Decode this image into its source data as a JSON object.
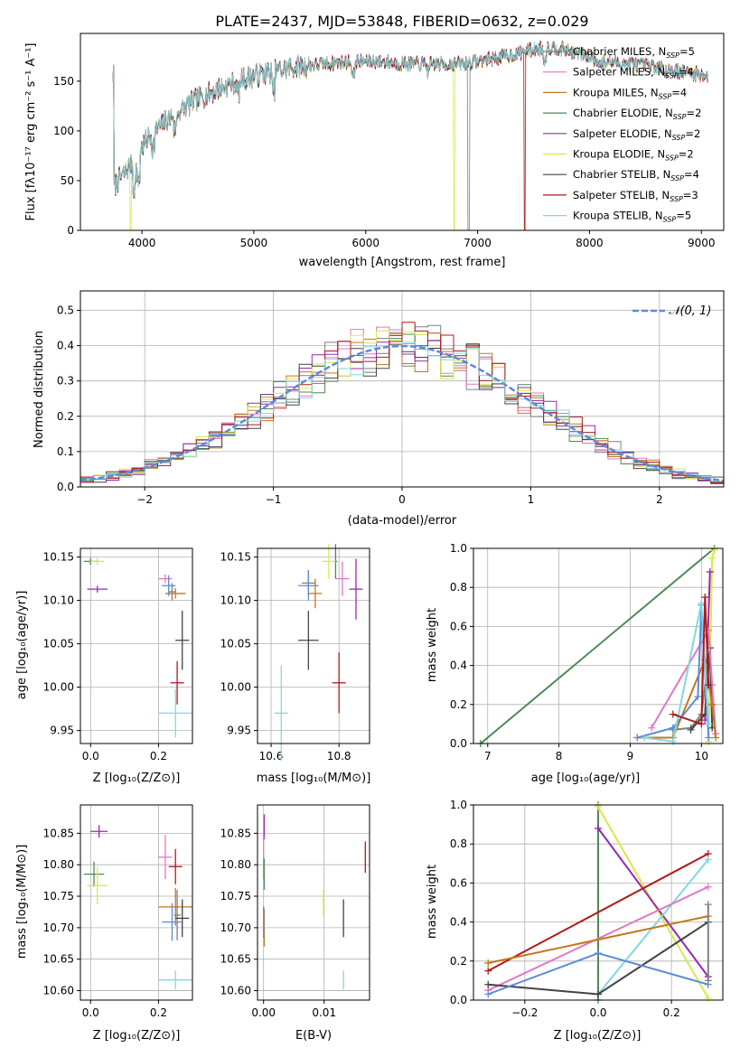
{
  "chart_data": [
    {
      "id": "spectrum",
      "type": "line",
      "title": "PLATE=2437, MJD=53848, FIBERID=0632, z=0.029",
      "xlabel": "wavelength [Angstrom, rest frame]",
      "ylabel": "Flux [fλ10⁻¹⁷ erg cm⁻² s⁻¹ A⁻¹]",
      "xlim": [
        3450,
        9200
      ],
      "ylim": [
        0,
        198
      ],
      "xticks": [
        "4000",
        "5000",
        "6000",
        "7000",
        "8000",
        "9000"
      ],
      "yticks": [
        "0",
        "50",
        "100",
        "150"
      ],
      "legend_position": "top-right",
      "grid": false,
      "series": [
        {
          "name": "Chabrier MILES, N_SSP=5",
          "label_main": "Chabrier MILES, N",
          "label_sub": "SSP",
          "label_tail": "=5",
          "color": "#808080"
        },
        {
          "name": "Salpeter MILES, N_SSP=4",
          "label_main": "Salpeter MILES, N",
          "label_sub": "SSP",
          "label_tail": "=4",
          "color": "#e377c2"
        },
        {
          "name": "Kroupa MILES, N_SSP=4",
          "label_main": "Kroupa MILES, N",
          "label_sub": "SSP",
          "label_tail": "=4",
          "color": "#c8751a"
        },
        {
          "name": "Chabrier ELODIE, N_SSP=2",
          "label_main": "Chabrier ELODIE, N",
          "label_sub": "SSP",
          "label_tail": "=2",
          "color": "#4e8a57"
        },
        {
          "name": "Salpeter ELODIE, N_SSP=2",
          "label_main": "Salpeter ELODIE, N",
          "label_sub": "SSP",
          "label_tail": "=2",
          "color": "#9b27af"
        },
        {
          "name": "Kroupa ELODIE, N_SSP=2",
          "label_main": "Kroupa ELODIE, N",
          "label_sub": "SSP",
          "label_tail": "=2",
          "color": "#d8e84a"
        },
        {
          "name": "Chabrier STELIB, N_SSP=4",
          "label_main": "Chabrier STELIB, N",
          "label_sub": "SSP",
          "label_tail": "=4",
          "color": "#444444"
        },
        {
          "name": "Salpeter STELIB, N_SSP=3",
          "label_main": "Salpeter STELIB, N",
          "label_sub": "SSP",
          "label_tail": "=3",
          "color": "#b11a1a"
        },
        {
          "name": "Kroupa STELIB, N_SSP=5",
          "label_main": "Kroupa STELIB, N",
          "label_sub": "SSP",
          "label_tail": "=5",
          "color": "#7fd8e0"
        }
      ],
      "continuum": {
        "x": [
          3750,
          3850,
          3950,
          4050,
          4150,
          4300,
          4500,
          4700,
          4900,
          5100,
          5300,
          5500,
          5700,
          5900,
          6100,
          6300,
          6500,
          6700,
          6900,
          7100,
          7300,
          7500,
          7700,
          7900,
          8100,
          8300,
          8500,
          8700,
          8900,
          9050
        ],
        "y": [
          45,
          58,
          75,
          92,
          103,
          118,
          132,
          143,
          152,
          158,
          163,
          166,
          168,
          170,
          170,
          168,
          167,
          167,
          168,
          172,
          176,
          182,
          184,
          178,
          170,
          168,
          166,
          162,
          158,
          156
        ]
      },
      "cutoffs": [
        {
          "series": 5,
          "x": 3900
        },
        {
          "series": 5,
          "x": 6790
        },
        {
          "series": 0,
          "x": 6920
        },
        {
          "series": 7,
          "x": 7420
        }
      ]
    },
    {
      "id": "residuals",
      "type": "histogram",
      "xlabel": "(data-model)/error",
      "ylabel": "Normed distribution",
      "xlim": [
        -2.5,
        2.5
      ],
      "ylim": [
        0,
        0.555
      ],
      "xticks": [
        "−2",
        "−1",
        "0",
        "1",
        "2"
      ],
      "yticks": [
        "0.0",
        "0.1",
        "0.2",
        "0.3",
        "0.4",
        "0.5"
      ],
      "grid": true,
      "bin_width": 0.1,
      "gaussian_label": "𝒩(0, 1)",
      "gaussian_color": "#5b8bd9",
      "legend_position": "top-right"
    },
    {
      "id": "age-vs-Z",
      "type": "errorbar",
      "xlabel": "Z [log₁₀(Z/Z⊙)]",
      "ylabel": "age  [log₁₀(age/yr)]",
      "xlim": [
        -0.03,
        0.3
      ],
      "ylim": [
        9.935,
        10.16
      ],
      "xticks": [
        {
          "v": 0.0,
          "t": "0.0"
        },
        {
          "v": 0.2,
          "t": "0.2"
        }
      ],
      "yticks": [
        {
          "v": 9.95,
          "t": "9.95"
        },
        {
          "v": 10.0,
          "t": "10.00"
        },
        {
          "v": 10.05,
          "t": "10.05"
        },
        {
          "v": 10.1,
          "t": "10.10"
        },
        {
          "v": 10.15,
          "t": "10.15"
        }
      ],
      "points": [
        {
          "c": "#808080",
          "x": 0.24,
          "y": 10.11,
          "xe": 0.01,
          "ye": 0.01
        },
        {
          "c": "#e377c2",
          "x": 0.22,
          "y": 10.125,
          "xe": 0.02,
          "ye": 0.005
        },
        {
          "c": "#c8751a",
          "x": 0.25,
          "y": 10.108,
          "xe": 0.03,
          "ye": 0.006
        },
        {
          "c": "#5b8bd9",
          "x": 0.23,
          "y": 10.117,
          "xe": 0.02,
          "ye": 0.012
        },
        {
          "c": "#4e8a57",
          "x": 0.0,
          "y": 10.145,
          "xe": 0.02,
          "ye": 0.004
        },
        {
          "c": "#9b27af",
          "x": 0.02,
          "y": 10.113,
          "xe": 0.03,
          "ye": 0.004
        },
        {
          "c": "#d8e84a",
          "x": 0.02,
          "y": 10.145,
          "xe": 0.02,
          "ye": 0.004
        },
        {
          "c": "#444444",
          "x": 0.27,
          "y": 10.054,
          "xe": 0.02,
          "ye": 0.034
        },
        {
          "c": "#b11a1a",
          "x": 0.255,
          "y": 10.005,
          "xe": 0.02,
          "ye": 0.025
        },
        {
          "c": "#7fd8e0",
          "x": 0.25,
          "y": 9.97,
          "xe": 0.05,
          "ye": 0.028
        }
      ]
    },
    {
      "id": "age-vs-mass",
      "type": "errorbar",
      "xlabel": "mass [log₁₀(M/M⊙)]",
      "ylabel": "",
      "xlim": [
        10.56,
        10.89
      ],
      "ylim": [
        9.935,
        10.16
      ],
      "xticks": [
        {
          "v": 10.6,
          "t": "10.6"
        },
        {
          "v": 10.8,
          "t": "10.8"
        }
      ],
      "yticks": [
        {
          "v": 9.95,
          "t": "9.95"
        },
        {
          "v": 10.0,
          "t": "10.00"
        },
        {
          "v": 10.05,
          "t": "10.05"
        },
        {
          "v": 10.1,
          "t": "10.10"
        },
        {
          "v": 10.15,
          "t": "10.15"
        }
      ],
      "points": [
        {
          "c": "#808080",
          "x": 10.71,
          "y": 10.12,
          "xe": 0.02,
          "ye": 0.015
        },
        {
          "c": "#5b8bd9",
          "x": 10.71,
          "y": 10.117,
          "xe": 0.03,
          "ye": 0.017
        },
        {
          "c": "#c8751a",
          "x": 10.73,
          "y": 10.108,
          "xe": 0.02,
          "ye": 0.017
        },
        {
          "c": "#e377c2",
          "x": 10.81,
          "y": 10.125,
          "xe": 0.02,
          "ye": 0.02
        },
        {
          "c": "#4e8a57",
          "x": 10.79,
          "y": 10.145,
          "xe": 0.005,
          "ye": 0.02
        },
        {
          "c": "#d8e84a",
          "x": 10.77,
          "y": 10.145,
          "xe": 0.02,
          "ye": 0.02
        },
        {
          "c": "#9b27af",
          "x": 10.85,
          "y": 10.113,
          "xe": 0.02,
          "ye": 0.035
        },
        {
          "c": "#444444",
          "x": 10.71,
          "y": 10.054,
          "xe": 0.03,
          "ye": 0.034
        },
        {
          "c": "#b11a1a",
          "x": 10.8,
          "y": 10.005,
          "xe": 0.02,
          "ye": 0.035
        },
        {
          "c": "#7fd8e0",
          "x": 10.63,
          "y": 9.97,
          "xe": 0.02,
          "ye": 0.055
        }
      ]
    },
    {
      "id": "mass-weight-vs-age",
      "type": "line",
      "xlabel": "age  [log₁₀(age/yr)]",
      "ylabel": "mass weight",
      "xlim": [
        6.8,
        10.3
      ],
      "ylim": [
        0,
        1.0
      ],
      "xticks": [
        {
          "v": 7,
          "t": "7"
        },
        {
          "v": 8,
          "t": "8"
        },
        {
          "v": 9,
          "t": "9"
        },
        {
          "v": 10,
          "t": "10"
        }
      ],
      "yticks": [
        {
          "v": 0,
          "t": "0.0"
        },
        {
          "v": 0.2,
          "t": "0.2"
        },
        {
          "v": 0.4,
          "t": "0.4"
        },
        {
          "v": 0.6,
          "t": "0.6"
        },
        {
          "v": 0.8,
          "t": "0.8"
        },
        {
          "v": 1.0,
          "t": "1.0"
        }
      ],
      "series": [
        {
          "c": "#4e8a57",
          "x": [
            6.9,
            10.18
          ],
          "y": [
            0.0,
            1.0
          ]
        },
        {
          "c": "#d8e84a",
          "x": [
            10.1,
            10.15,
            10.18
          ],
          "y": [
            0.01,
            0.95,
            0.99
          ]
        },
        {
          "c": "#9b27af",
          "x": [
            10.05,
            10.12
          ],
          "y": [
            0.12,
            0.88
          ]
        },
        {
          "c": "#808080",
          "x": [
            9.6,
            9.85,
            10.0,
            10.12,
            10.15
          ],
          "y": [
            0.07,
            0.08,
            0.15,
            0.49,
            0.2
          ]
        },
        {
          "c": "#444444",
          "x": [
            9.85,
            10.05,
            10.12,
            10.15
          ],
          "y": [
            0.07,
            0.15,
            0.49,
            0.08
          ]
        },
        {
          "c": "#e377c2",
          "x": [
            9.3,
            10.1,
            10.15,
            10.2
          ],
          "y": [
            0.08,
            0.58,
            0.3,
            0.05
          ]
        },
        {
          "c": "#c8751a",
          "x": [
            9.1,
            9.6,
            10.05,
            10.15,
            10.2
          ],
          "y": [
            0.03,
            0.03,
            0.43,
            0.2,
            0.03
          ]
        },
        {
          "c": "#5b8bd9",
          "x": [
            9.1,
            9.6,
            9.95,
            10.0,
            10.1
          ],
          "y": [
            0.03,
            0.08,
            0.24,
            0.71,
            0.03
          ]
        },
        {
          "c": "#7fd8e0",
          "x": [
            9.2,
            9.6,
            10.0,
            10.05,
            10.1
          ],
          "y": [
            0.03,
            0.01,
            0.72,
            0.4,
            0.1
          ]
        },
        {
          "c": "#b11a1a",
          "x": [
            9.6,
            10.0,
            10.05,
            10.1
          ],
          "y": [
            0.15,
            0.1,
            0.75,
            0.3
          ]
        }
      ]
    },
    {
      "id": "mass-vs-Z",
      "type": "errorbar",
      "xlabel": "Z [log₁₀(Z/Z⊙)]",
      "ylabel": "mass [log₁₀(M/M⊙)]",
      "xlim": [
        -0.03,
        0.3
      ],
      "ylim": [
        10.585,
        10.895
      ],
      "xticks": [
        {
          "v": 0.0,
          "t": "0.0"
        },
        {
          "v": 0.2,
          "t": "0.2"
        }
      ],
      "yticks": [
        {
          "v": 10.6,
          "t": "10.60"
        },
        {
          "v": 10.65,
          "t": "10.65"
        },
        {
          "v": 10.7,
          "t": "10.70"
        },
        {
          "v": 10.75,
          "t": "10.75"
        },
        {
          "v": 10.8,
          "t": "10.80"
        },
        {
          "v": 10.85,
          "t": "10.85"
        }
      ],
      "points": [
        {
          "c": "#9b27af",
          "x": 0.025,
          "y": 10.853,
          "xe": 0.025,
          "ye": 0.01
        },
        {
          "c": "#e377c2",
          "x": 0.22,
          "y": 10.812,
          "xe": 0.02,
          "ye": 0.035
        },
        {
          "c": "#b11a1a",
          "x": 0.25,
          "y": 10.797,
          "xe": 0.02,
          "ye": 0.028
        },
        {
          "c": "#4e8a57",
          "x": 0.01,
          "y": 10.785,
          "xe": 0.03,
          "ye": 0.02
        },
        {
          "c": "#d8e84a",
          "x": 0.02,
          "y": 10.767,
          "xe": 0.03,
          "ye": 0.03
        },
        {
          "c": "#c8751a",
          "x": 0.25,
          "y": 10.733,
          "xe": 0.05,
          "ye": 0.03
        },
        {
          "c": "#808080",
          "x": 0.255,
          "y": 10.72,
          "xe": 0.01,
          "ye": 0.04
        },
        {
          "c": "#444444",
          "x": 0.27,
          "y": 10.715,
          "xe": 0.02,
          "ye": 0.03
        },
        {
          "c": "#5b8bd9",
          "x": 0.24,
          "y": 10.709,
          "xe": 0.03,
          "ye": 0.03
        },
        {
          "c": "#7fd8e0",
          "x": 0.25,
          "y": 10.617,
          "xe": 0.05,
          "ye": 0.015
        }
      ]
    },
    {
      "id": "mass-vs-EBV",
      "type": "errorbar",
      "xlabel": "E(B-V)",
      "ylabel": "",
      "xlim": [
        -0.001,
        0.0175
      ],
      "ylim": [
        10.585,
        10.895
      ],
      "xticks": [
        {
          "v": 0.0,
          "t": "0.00"
        },
        {
          "v": 0.01,
          "t": "0.01"
        }
      ],
      "yticks": [
        {
          "v": 10.6,
          "t": "10.60"
        },
        {
          "v": 10.65,
          "t": "10.65"
        },
        {
          "v": 10.7,
          "t": "10.70"
        },
        {
          "v": 10.75,
          "t": "10.75"
        },
        {
          "v": 10.8,
          "t": "10.80"
        },
        {
          "v": 10.85,
          "t": "10.85"
        }
      ],
      "points": [
        {
          "c": "#9b27af",
          "x": 0.0001,
          "y": 10.86,
          "xe": 0.0,
          "ye": 0.02
        },
        {
          "c": "#e377c2",
          "x": 0.0,
          "y": 10.812,
          "xe": 0.0,
          "ye": 0.035
        },
        {
          "c": "#4e8a57",
          "x": 0.0001,
          "y": 10.785,
          "xe": 0.0,
          "ye": 0.025
        },
        {
          "c": "#c8751a",
          "x": 0.0001,
          "y": 10.7,
          "xe": 0.0,
          "ye": 0.03
        },
        {
          "c": "#5b8bd9",
          "x": 0.0,
          "y": 10.709,
          "xe": 0.0,
          "ye": 0.025
        },
        {
          "c": "#d8e84a",
          "x": 0.0099,
          "y": 10.74,
          "xe": 0.0,
          "ye": 0.02
        },
        {
          "c": "#444444",
          "x": 0.0132,
          "y": 10.715,
          "xe": 0.0,
          "ye": 0.03
        },
        {
          "c": "#7fd8e0",
          "x": 0.0132,
          "y": 10.617,
          "xe": 0.0,
          "ye": 0.015
        },
        {
          "c": "#b11a1a",
          "x": 0.0168,
          "y": 10.812,
          "xe": 0.0,
          "ye": 0.025
        }
      ]
    },
    {
      "id": "mass-weight-vs-Z",
      "type": "line",
      "xlabel": "Z [log₁₀(Z/Z⊙)]",
      "ylabel": "mass weight",
      "xlim": [
        -0.34,
        0.34
      ],
      "ylim": [
        0,
        1.0
      ],
      "xticks": [
        {
          "v": -0.2,
          "t": "−0.2"
        },
        {
          "v": 0.0,
          "t": "0.0"
        },
        {
          "v": 0.2,
          "t": "0.2"
        }
      ],
      "yticks": [
        {
          "v": 0,
          "t": "0.0"
        },
        {
          "v": 0.2,
          "t": "0.2"
        },
        {
          "v": 0.4,
          "t": "0.4"
        },
        {
          "v": 0.6,
          "t": "0.6"
        },
        {
          "v": 0.8,
          "t": "0.8"
        },
        {
          "v": 1.0,
          "t": "1.0"
        }
      ],
      "series": [
        {
          "c": "#4e8a57",
          "x": [
            0.0,
            0.0
          ],
          "y": [
            0.0,
            1.0
          ]
        },
        {
          "c": "#d8e84a",
          "x": [
            0.0,
            0.3
          ],
          "y": [
            0.99,
            0.01
          ]
        },
        {
          "c": "#9b27af",
          "x": [
            0.0,
            0.3
          ],
          "y": [
            0.88,
            0.12
          ]
        },
        {
          "c": "#b11a1a",
          "x": [
            -0.3,
            0.3
          ],
          "y": [
            0.15,
            0.75
          ]
        },
        {
          "c": "#7fd8e0",
          "x": [
            0.0,
            0.3
          ],
          "y": [
            0.03,
            0.72
          ]
        },
        {
          "c": "#e377c2",
          "x": [
            -0.3,
            0.3
          ],
          "y": [
            0.05,
            0.58
          ]
        },
        {
          "c": "#c8751a",
          "x": [
            -0.3,
            0.3
          ],
          "y": [
            0.19,
            0.43
          ]
        },
        {
          "c": "#444444",
          "x": [
            -0.3,
            0.0,
            0.3
          ],
          "y": [
            0.08,
            0.03,
            0.4
          ]
        },
        {
          "c": "#5b8bd9",
          "x": [
            -0.3,
            0.0,
            0.3
          ],
          "y": [
            0.03,
            0.24,
            0.08
          ]
        },
        {
          "c": "#808080",
          "x": [
            0.3,
            0.3
          ],
          "y": [
            0.1,
            0.49
          ]
        }
      ]
    }
  ]
}
